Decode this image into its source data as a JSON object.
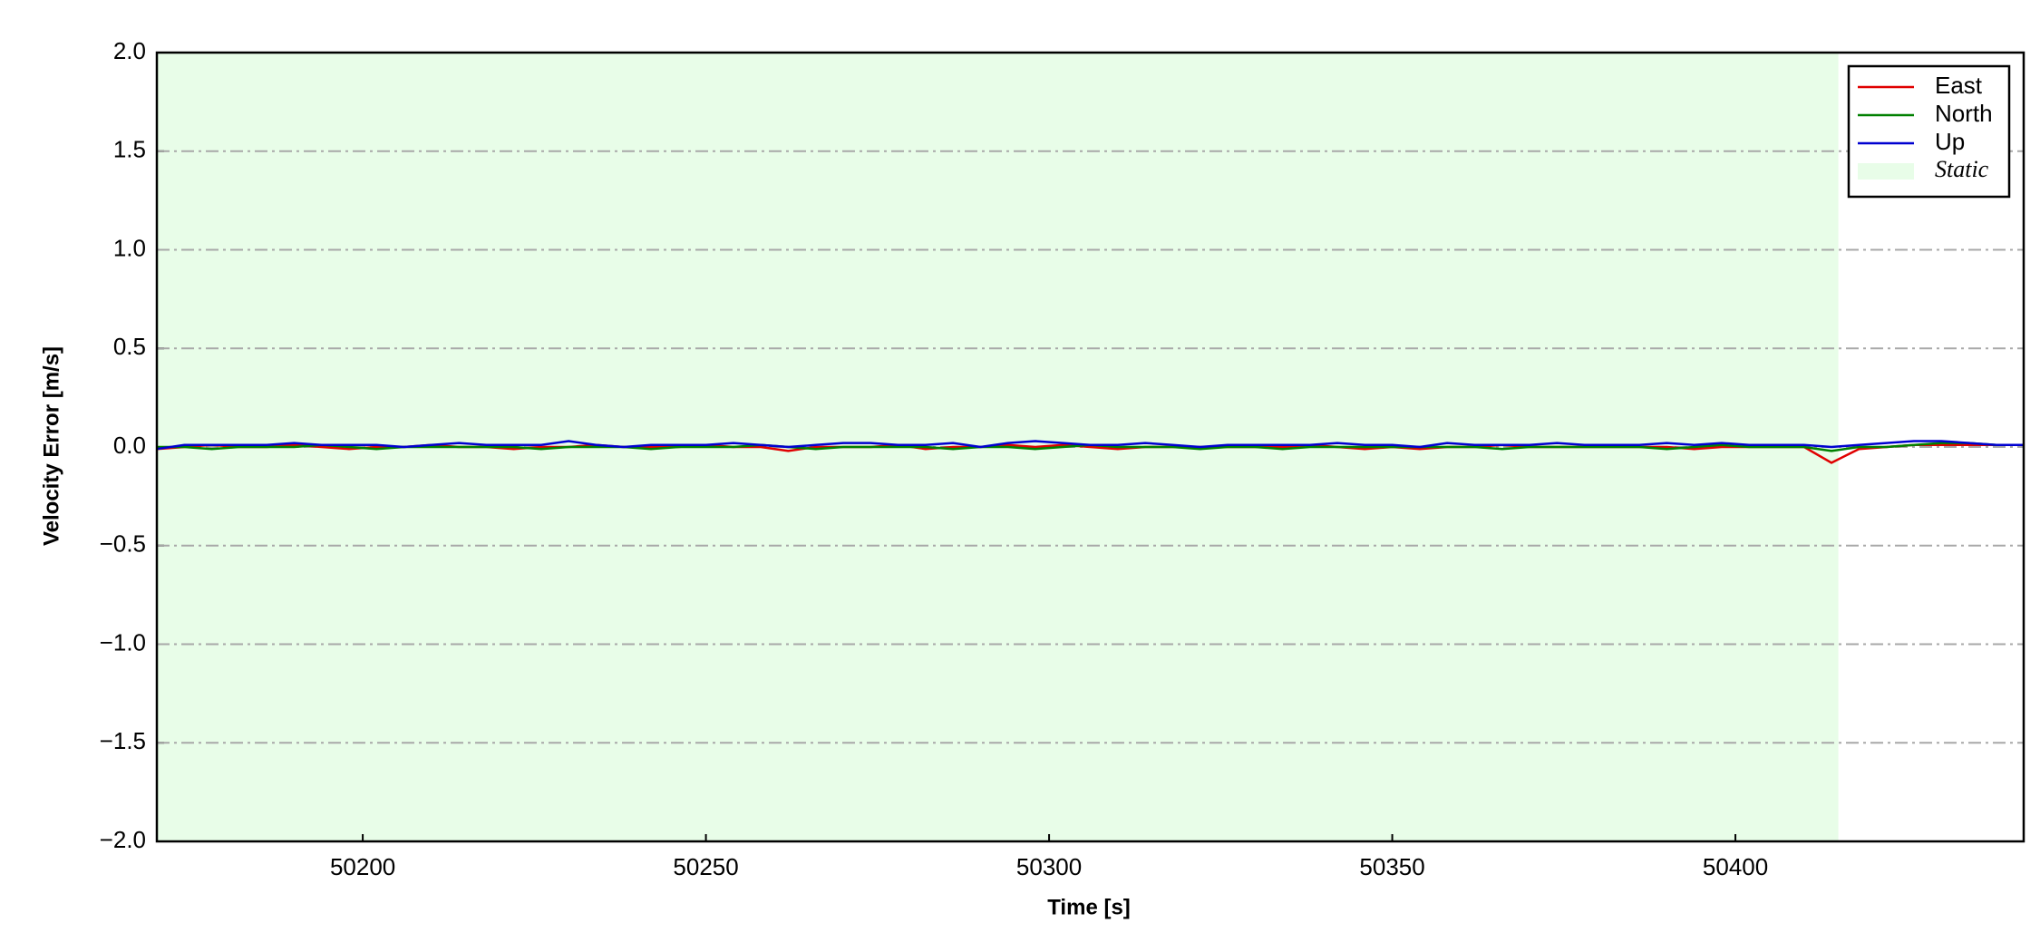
{
  "chart_data": {
    "type": "line",
    "xlabel": "Time [s]",
    "ylabel": "Velocity Error [m/s]",
    "x": [
      50170,
      50174,
      50178,
      50182,
      50186,
      50190,
      50194,
      50198,
      50202,
      50206,
      50210,
      50214,
      50218,
      50222,
      50226,
      50230,
      50234,
      50238,
      50242,
      50246,
      50250,
      50254,
      50258,
      50262,
      50266,
      50270,
      50274,
      50278,
      50282,
      50286,
      50290,
      50294,
      50298,
      50302,
      50306,
      50310,
      50314,
      50318,
      50322,
      50326,
      50330,
      50334,
      50338,
      50342,
      50346,
      50350,
      50354,
      50358,
      50362,
      50366,
      50370,
      50374,
      50378,
      50382,
      50386,
      50390,
      50394,
      50398,
      50402,
      50406,
      50410,
      50414,
      50418,
      50422,
      50426,
      50430,
      50434,
      50438,
      50442
    ],
    "series": [
      {
        "name": "East",
        "color": "#e00000",
        "values": [
          -0.01,
          0,
          0.01,
          0,
          0,
          0.01,
          0,
          -0.01,
          0,
          0,
          0.01,
          0,
          0,
          -0.01,
          0,
          0,
          0.01,
          0,
          0,
          0,
          0.01,
          0,
          0,
          -0.02,
          0,
          0,
          0,
          0.01,
          -0.01,
          0,
          0,
          0.01,
          0,
          0.01,
          0,
          -0.01,
          0,
          0,
          0,
          0,
          0,
          0,
          0.01,
          0,
          -0.01,
          0,
          -0.01,
          0,
          0,
          0.01,
          0,
          0,
          0,
          0,
          0,
          0,
          -0.01,
          0,
          0,
          0,
          0,
          -0.08,
          -0.01,
          0,
          0.01,
          0.01,
          0.01,
          0.01,
          0.01
        ]
      },
      {
        "name": "North",
        "color": "#008000",
        "values": [
          0,
          0,
          -0.01,
          0,
          0,
          0,
          0.01,
          0,
          -0.01,
          0,
          0,
          0,
          0,
          0,
          -0.01,
          0,
          0,
          0,
          -0.01,
          0,
          0,
          0,
          0.01,
          0,
          -0.01,
          0,
          0,
          0,
          0,
          -0.01,
          0,
          0,
          -0.01,
          0,
          0.01,
          0,
          0,
          0,
          -0.01,
          0,
          0,
          -0.01,
          0,
          0,
          0,
          0,
          0,
          0,
          0,
          -0.01,
          0,
          0,
          0,
          0,
          0,
          -0.01,
          0,
          0.01,
          0,
          0,
          0,
          -0.02,
          0,
          0,
          0.01,
          0.02,
          0.02,
          0.01,
          0.01
        ]
      },
      {
        "name": "Up",
        "color": "#0000d0",
        "values": [
          -0.01,
          0.01,
          0.01,
          0.01,
          0.01,
          0.02,
          0.01,
          0.01,
          0.01,
          0,
          0.01,
          0.02,
          0.01,
          0.01,
          0.01,
          0.03,
          0.01,
          0,
          0.01,
          0.01,
          0.01,
          0.02,
          0.01,
          0,
          0.01,
          0.02,
          0.02,
          0.01,
          0.01,
          0.02,
          0,
          0.02,
          0.03,
          0.02,
          0.01,
          0.01,
          0.02,
          0.01,
          0,
          0.01,
          0.01,
          0.01,
          0.01,
          0.02,
          0.01,
          0.01,
          0,
          0.02,
          0.01,
          0.01,
          0.01,
          0.02,
          0.01,
          0.01,
          0.01,
          0.02,
          0.01,
          0.02,
          0.01,
          0.01,
          0.01,
          0,
          0.01,
          0.02,
          0.03,
          0.03,
          0.02,
          0.01,
          0.01
        ]
      }
    ],
    "spans": [
      {
        "name": "Static",
        "start": 50170,
        "end": 50415,
        "color": "#e8fde8"
      }
    ],
    "xlim": [
      50170,
      50442
    ],
    "xticks": [
      50200,
      50250,
      50300,
      50350,
      50400
    ],
    "ylim": [
      -2,
      2
    ],
    "yticks": [
      {
        "value": -2,
        "label": "−2.0"
      },
      {
        "value": -1.5,
        "label": "−1.5"
      },
      {
        "value": -1,
        "label": "−1.0"
      },
      {
        "value": -0.5,
        "label": "−0.5"
      },
      {
        "value": 0,
        "label": "0.0"
      },
      {
        "value": 0.5,
        "label": "0.5"
      },
      {
        "value": 1,
        "label": "1.0"
      },
      {
        "value": 1.5,
        "label": "1.5"
      },
      {
        "value": 2,
        "label": "2.0"
      }
    ],
    "grid": true,
    "legend": "upper right"
  }
}
